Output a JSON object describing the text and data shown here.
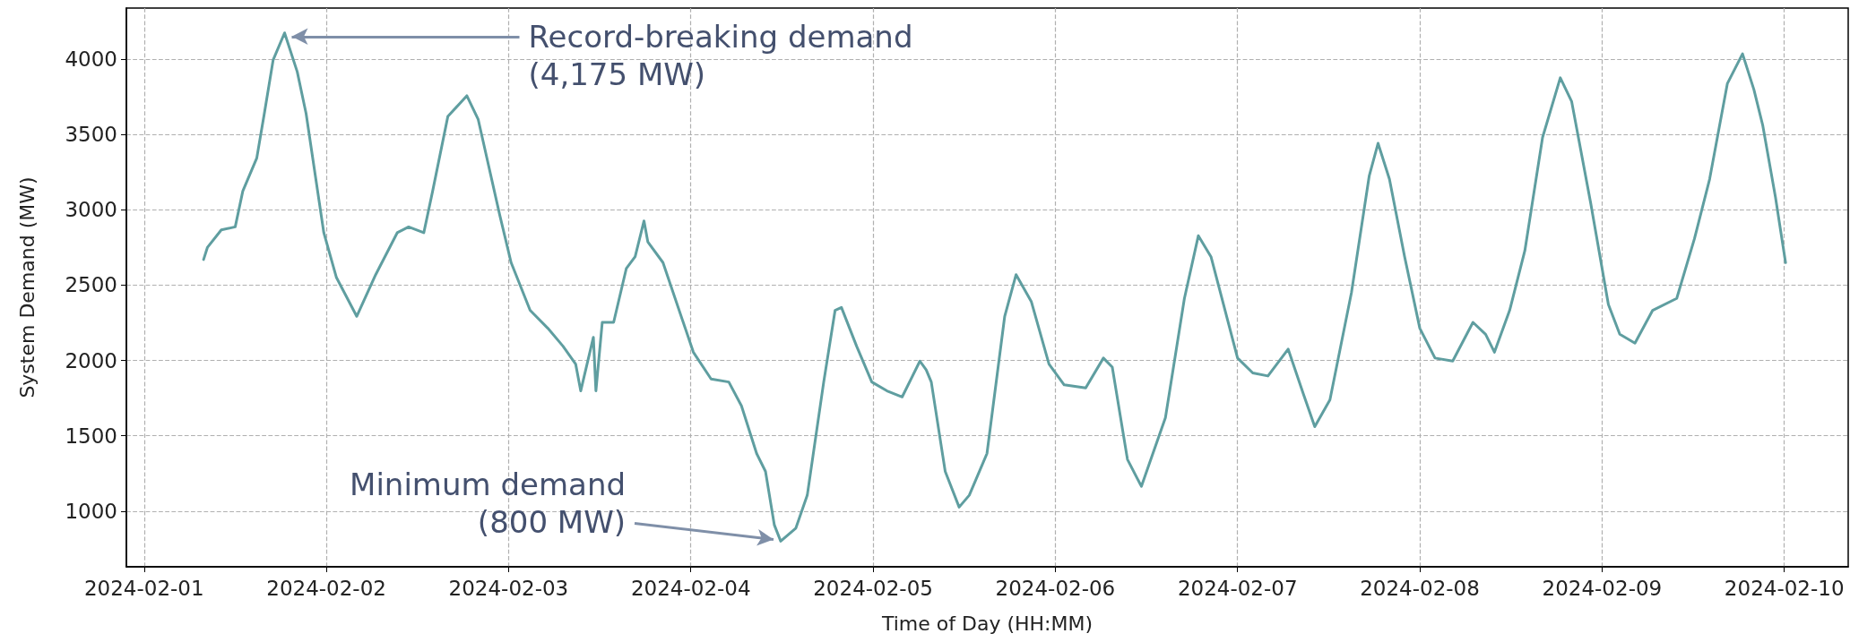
{
  "chart_data": {
    "type": "line",
    "xlabel": "Time of Day (HH:MM)",
    "ylabel": "System Demand (MW)",
    "x": [
      "2024-02-01T07:50",
      "2024-02-01T08:20",
      "2024-02-01T10:10",
      "2024-02-01T12:00",
      "2024-02-01T13:00",
      "2024-02-01T14:50",
      "2024-02-01T15:50",
      "2024-02-01T17:00",
      "2024-02-01T18:30",
      "2024-02-01T20:10",
      "2024-02-01T21:20",
      "2024-02-01T23:40",
      "2024-02-02T01:20",
      "2024-02-02T04:00",
      "2024-02-02T06:30",
      "2024-02-02T09:20",
      "2024-02-02T10:50",
      "2024-02-02T12:50",
      "2024-02-02T14:00",
      "2024-02-02T16:00",
      "2024-02-02T18:30",
      "2024-02-02T20:00",
      "2024-02-02T22:50",
      "2024-02-03T00:20",
      "2024-02-03T02:50",
      "2024-02-03T05:10",
      "2024-02-03T07:10",
      "2024-02-03T08:50",
      "2024-02-03T09:30",
      "2024-02-03T11:10",
      "2024-02-03T11:30",
      "2024-02-03T12:20",
      "2024-02-03T13:50",
      "2024-02-03T15:30",
      "2024-02-03T16:40",
      "2024-02-03T17:50",
      "2024-02-03T18:20",
      "2024-02-03T20:20",
      "2024-02-04T00:20",
      "2024-02-04T02:40",
      "2024-02-04T05:00",
      "2024-02-04T06:40",
      "2024-02-04T08:40",
      "2024-02-04T09:50",
      "2024-02-04T11:00",
      "2024-02-04T11:50",
      "2024-02-04T13:50",
      "2024-02-04T15:20",
      "2024-02-04T17:30",
      "2024-02-04T19:00",
      "2024-02-04T19:50",
      "2024-02-04T21:50",
      "2024-02-04T23:50",
      "2024-02-05T01:50",
      "2024-02-05T03:50",
      "2024-02-05T06:10",
      "2024-02-05T07:00",
      "2024-02-05T07:40",
      "2024-02-05T09:30",
      "2024-02-05T11:20",
      "2024-02-05T12:40",
      "2024-02-05T15:00",
      "2024-02-05T17:20",
      "2024-02-05T18:50",
      "2024-02-05T20:50",
      "2024-02-05T23:10",
      "2024-02-06T01:10",
      "2024-02-06T04:00",
      "2024-02-06T06:20",
      "2024-02-06T07:30",
      "2024-02-06T09:30",
      "2024-02-06T11:20",
      "2024-02-06T14:30",
      "2024-02-06T17:00",
      "2024-02-06T18:50",
      "2024-02-06T20:30",
      "2024-02-07T00:00",
      "2024-02-07T02:00",
      "2024-02-07T04:00",
      "2024-02-07T06:40",
      "2024-02-07T08:40",
      "2024-02-07T10:10",
      "2024-02-07T12:10",
      "2024-02-07T15:00",
      "2024-02-07T17:20",
      "2024-02-07T18:30",
      "2024-02-07T20:00",
      "2024-02-07T22:00",
      "2024-02-08T00:00",
      "2024-02-08T02:00",
      "2024-02-08T04:20",
      "2024-02-08T07:00",
      "2024-02-08T08:40",
      "2024-02-08T09:50",
      "2024-02-08T11:50",
      "2024-02-08T13:50",
      "2024-02-08T16:10",
      "2024-02-08T18:30",
      "2024-02-08T20:00",
      "2024-02-08T22:30",
      "2024-02-09T00:50",
      "2024-02-09T02:20",
      "2024-02-09T04:20",
      "2024-02-09T06:40",
      "2024-02-09T09:50",
      "2024-02-09T12:10",
      "2024-02-09T14:10",
      "2024-02-09T16:30",
      "2024-02-09T18:30",
      "2024-02-09T20:00",
      "2024-02-09T21:10",
      "2024-02-09T22:50",
      "2024-02-10T00:10"
    ],
    "series": [
      {
        "color": "#5f9ea0",
        "values": [
          2670,
          2750,
          2867,
          2887,
          3125,
          3343,
          3640,
          3996,
          4175,
          3917,
          3640,
          2848,
          2550,
          2293,
          2570,
          2848,
          2887,
          2848,
          3125,
          3620,
          3758,
          3600,
          2966,
          2650,
          2333,
          2214,
          2095,
          1976,
          1798,
          2154,
          1798,
          2253,
          2253,
          2610,
          2689,
          2927,
          2788,
          2650,
          2055,
          1877,
          1857,
          1699,
          1382,
          1263,
          907,
          800,
          887,
          1105,
          1857,
          2333,
          2352,
          2095,
          1857,
          1798,
          1758,
          1996,
          1937,
          1857,
          1263,
          1026,
          1105,
          1382,
          2293,
          2570,
          2392,
          1976,
          1838,
          1818,
          2016,
          1956,
          1343,
          1164,
          1620,
          2412,
          2828,
          2689,
          2016,
          1917,
          1897,
          2075,
          1778,
          1560,
          1739,
          2451,
          3224,
          3442,
          3204,
          2689,
          2214,
          2016,
          1996,
          2253,
          2174,
          2055,
          2333,
          2729,
          3481,
          3877,
          3719,
          3046,
          2372,
          2174,
          2115,
          2333,
          2412,
          2808,
          3204,
          3838,
          4036,
          3798,
          3560,
          3085,
          2650
        ]
      }
    ],
    "xlim": [
      "2024-01-31T21:40",
      "2024-02-10T08:25"
    ],
    "xticks": [
      "2024-02-01",
      "2024-02-02",
      "2024-02-03",
      "2024-02-04",
      "2024-02-05",
      "2024-02-06",
      "2024-02-07",
      "2024-02-08",
      "2024-02-09",
      "2024-02-10"
    ],
    "ylim": [
      630,
      4340
    ],
    "yticks": [
      1000,
      1500,
      2000,
      2500,
      3000,
      3500,
      4000
    ],
    "grid": true,
    "marker": "none",
    "line_style": "solid",
    "annotations": [
      {
        "text": "Record-breaking demand\n(4,175 MW)",
        "x": "2024-02-01T18:30",
        "y": 4175
      },
      {
        "text": "Minimum demand\n(800 MW)",
        "x": "2024-02-04T11:50",
        "y": 800
      }
    ]
  }
}
